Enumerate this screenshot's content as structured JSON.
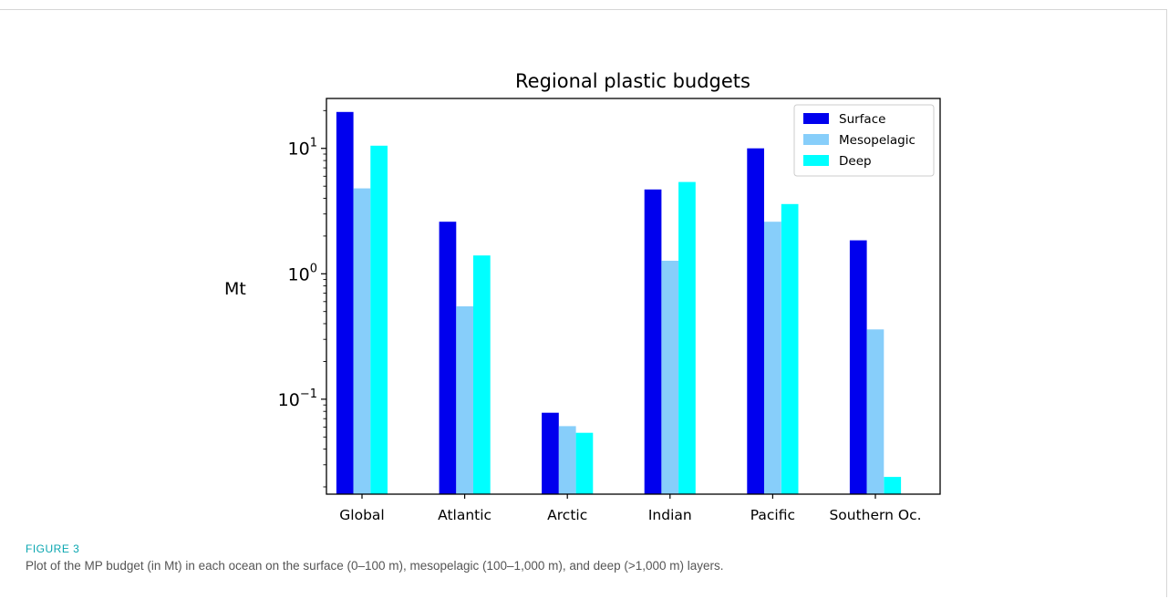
{
  "figure": {
    "label": "FIGURE 3",
    "caption": "Plot of the MP budget (in Mt) in each ocean on the surface (0–100 m), mesopelagic (100–1,000 m), and deep (>1,000 m) layers."
  },
  "chart_data": {
    "type": "bar",
    "title": "Regional plastic budgets",
    "xlabel": "",
    "ylabel": "Mt",
    "yscale": "log",
    "ylim": [
      0.0175,
      25
    ],
    "yticks": [
      {
        "value": 0.1,
        "base": "10",
        "exp": "−1"
      },
      {
        "value": 1,
        "base": "10",
        "exp": "0"
      },
      {
        "value": 10,
        "base": "10",
        "exp": "1"
      }
    ],
    "categories": [
      "Global",
      "Atlantic",
      "Arctic",
      "Indian",
      "Pacific",
      "Southern Oc."
    ],
    "series": [
      {
        "name": "Surface",
        "color": "#0000ee",
        "values": [
          19.5,
          2.6,
          0.078,
          4.7,
          10.0,
          1.85
        ]
      },
      {
        "name": "Mesopelagic",
        "color": "#87cefa",
        "values": [
          4.8,
          0.55,
          0.061,
          1.27,
          2.6,
          0.36
        ]
      },
      {
        "name": "Deep",
        "color": "#00ffff",
        "values": [
          10.5,
          1.4,
          0.054,
          5.4,
          3.6,
          0.024
        ]
      }
    ],
    "legend": "top-right",
    "grid": false
  }
}
